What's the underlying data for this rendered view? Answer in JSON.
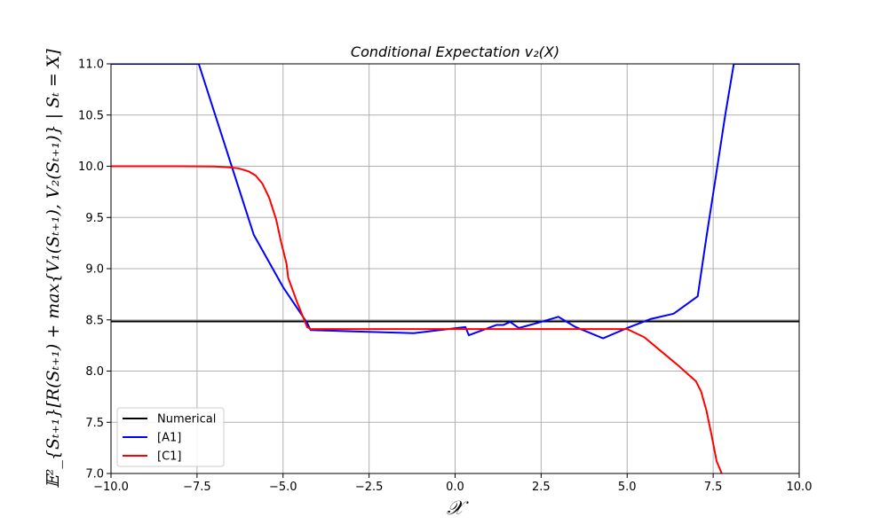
{
  "chart_data": {
    "type": "line",
    "title": "Conditional Expectation v₂(X)",
    "xlabel": "𝒳",
    "ylabel": "𝔼²_{Sₜ₊₁}[R(Sₜ₊₁) + max{V₁(Sₜ₊₁), V₂(Sₜ₊₁)} | Sₜ = X]",
    "xlim": [
      -10,
      10
    ],
    "ylim": [
      7.0,
      11.0
    ],
    "xticks": [
      -10,
      -7.5,
      -5,
      -2.5,
      0,
      2.5,
      5,
      7.5,
      10
    ],
    "xtick_labels": [
      "−10.0",
      "−7.5",
      "−5.0",
      "−2.5",
      "0.0",
      "2.5",
      "5.0",
      "7.5",
      "10.0"
    ],
    "yticks": [
      7.0,
      7.5,
      8.0,
      8.5,
      9.0,
      9.5,
      10.0,
      10.5,
      11.0
    ],
    "ytick_labels": [
      "7.0",
      "7.5",
      "8.0",
      "8.5",
      "9.0",
      "9.5",
      "10.0",
      "10.5",
      "11.0"
    ],
    "grid": true,
    "legend_position": "lower-left",
    "series": [
      {
        "name": "Numerical",
        "color": "#000000",
        "x": [
          -10,
          10
        ],
        "y": [
          8.485,
          8.485
        ]
      },
      {
        "name": "[A1]",
        "color": "#0000ff",
        "x": [
          -10,
          -7.45,
          -5.85,
          -5.0,
          -4.3,
          -4.2,
          -1.2,
          0.3,
          0.4,
          1.2,
          1.4,
          1.6,
          1.85,
          2.5,
          3.0,
          3.5,
          4.3,
          5.0,
          5.7,
          6.35,
          7.05,
          7.3,
          7.6,
          7.85,
          8.1,
          10
        ],
        "y": [
          11.0,
          11.0,
          9.33,
          8.82,
          8.47,
          8.4,
          8.37,
          8.43,
          8.35,
          8.45,
          8.45,
          8.48,
          8.42,
          8.48,
          8.53,
          8.43,
          8.32,
          8.42,
          8.51,
          8.56,
          8.73,
          9.3,
          9.95,
          10.5,
          11.0,
          11.0
        ]
      },
      {
        "name": "[C1]",
        "color": "#ff0000",
        "x": [
          -10,
          -8.0,
          -7.0,
          -6.6,
          -6.3,
          -6.0,
          -5.8,
          -5.6,
          -5.4,
          -5.2,
          -5.05,
          -4.9,
          -4.85,
          -4.6,
          -4.3,
          -4.2,
          0,
          4.0,
          5.0,
          5.5,
          6.0,
          6.5,
          6.8,
          7.0,
          7.15,
          7.3,
          7.45,
          7.6,
          7.75
        ],
        "y": [
          10.0,
          10.0,
          9.998,
          9.99,
          9.98,
          9.95,
          9.91,
          9.83,
          9.69,
          9.48,
          9.25,
          9.05,
          8.91,
          8.68,
          8.43,
          8.41,
          8.41,
          8.41,
          8.41,
          8.33,
          8.19,
          8.05,
          7.96,
          7.9,
          7.8,
          7.62,
          7.38,
          7.12,
          7.0
        ]
      }
    ]
  }
}
